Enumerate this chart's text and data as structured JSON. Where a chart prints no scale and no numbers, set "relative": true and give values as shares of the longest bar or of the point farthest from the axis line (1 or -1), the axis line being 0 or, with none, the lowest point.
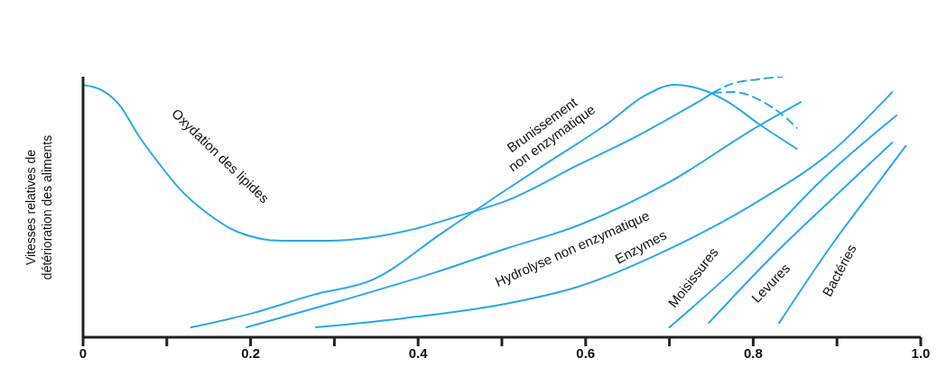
{
  "chart_data": {
    "type": "line",
    "relative": true,
    "ylabel": "Vitesses relatives de détérioration des aliments",
    "xlim": [
      0,
      1
    ],
    "xticks": [
      0,
      {
        "value": 0.1,
        "label": null
      },
      0.2,
      {
        "value": 0.3,
        "label": null
      },
      0.4,
      {
        "value": 0.5,
        "label": null
      },
      0.6,
      {
        "value": 0.7,
        "label": null
      },
      0.8,
      {
        "value": 0.9,
        "label": null
      },
      {
        "value": 1,
        "label": "1.0"
      }
    ],
    "grid": false,
    "legend": false,
    "marker": "none",
    "line_style": "solid",
    "series": [
      {
        "name": "Oxydation des lipides",
        "color": "#2aa8e8",
        "x": [
          0,
          0.023,
          0.044,
          0.066,
          0.092,
          0.116,
          0.149,
          0.184,
          0.238,
          0.292,
          0.346,
          0.4,
          0.454,
          0.504,
          0.591,
          0.663,
          0.734,
          0.752
        ],
        "values": [
          0.968,
          0.947,
          0.889,
          0.775,
          0.661,
          0.567,
          0.474,
          0.405,
          0.37,
          0.37,
          0.384,
          0.419,
          0.471,
          0.522,
          0.661,
          0.775,
          0.903,
          0.938
        ]
      },
      {
        "name": "Brunissement non enzymatique",
        "color": "#2aa8e8",
        "x": [
          0.129,
          0.203,
          0.275,
          0.346,
          0.429,
          0.501,
          0.555,
          0.626,
          0.669,
          0.706,
          0.734,
          0.77,
          0.806,
          0.852
        ],
        "values": [
          0.038,
          0.093,
          0.163,
          0.221,
          0.401,
          0.557,
          0.671,
          0.82,
          0.924,
          0.969,
          0.955,
          0.903,
          0.82,
          0.723
        ]
      },
      {
        "name": "Hydrolyse non enzymatique",
        "color": "#2aa8e8",
        "x": [
          0.195,
          0.31,
          0.418,
          0.504,
          0.591,
          0.698,
          0.806,
          0.857
        ],
        "values": [
          0.038,
          0.142,
          0.246,
          0.339,
          0.429,
          0.592,
          0.81,
          0.903
        ]
      },
      {
        "name": "Enzymes",
        "color": "#2aa8e8",
        "x": [
          0.278,
          0.383,
          0.504,
          0.591,
          0.698,
          0.806,
          0.895,
          0.966
        ],
        "values": [
          0.038,
          0.073,
          0.128,
          0.194,
          0.336,
          0.522,
          0.716,
          0.941
        ]
      },
      {
        "name": "Moisissures",
        "color": "#2aa8e8",
        "x": [
          0.7,
          0.788,
          0.878,
          0.971
        ],
        "values": [
          0.038,
          0.291,
          0.592,
          0.851
        ]
      },
      {
        "name": "Levures",
        "color": "#2aa8e8",
        "x": [
          0.747,
          0.824,
          0.895,
          0.966
        ],
        "values": [
          0.055,
          0.315,
          0.533,
          0.747
        ]
      },
      {
        "name": "Bactéries",
        "color": "#2aa8e8",
        "x": [
          0.831,
          0.895,
          0.949,
          0.982
        ],
        "values": [
          0.055,
          0.36,
          0.592,
          0.734
        ]
      },
      {
        "color": "#2aa8e8",
        "line_style": "dashed",
        "x": [
          0.752,
          0.774,
          0.806,
          0.835
        ],
        "values": [
          0.938,
          0.972,
          0.99,
          1
        ]
      },
      {
        "color": "#2aa8e8",
        "line_style": "dashed",
        "x": [
          0.752,
          0.777,
          0.806,
          0.824,
          0.842,
          0.852
        ],
        "values": [
          0.938,
          0.941,
          0.913,
          0.879,
          0.834,
          0.803
        ]
      }
    ]
  }
}
